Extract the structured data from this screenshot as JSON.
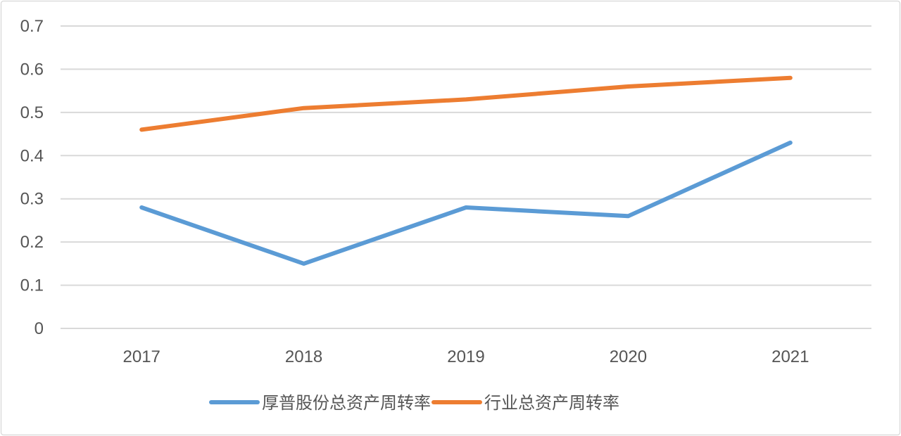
{
  "chart_data": {
    "type": "line",
    "title": "",
    "xlabel": "",
    "ylabel": "",
    "categories": [
      "2017",
      "2018",
      "2019",
      "2020",
      "2021"
    ],
    "ylim": [
      0,
      0.7
    ],
    "yticks": [
      "0",
      "0.1",
      "0.2",
      "0.3",
      "0.4",
      "0.5",
      "0.6",
      "0.7"
    ],
    "grid": true,
    "legend_position": "bottom",
    "series": [
      {
        "name": "厚普股份总资产周转率",
        "color": "#5b9bd5",
        "values": [
          0.28,
          0.15,
          0.28,
          0.26,
          0.43
        ]
      },
      {
        "name": "行业总资产周转率",
        "color": "#ed7d31",
        "values": [
          0.46,
          0.51,
          0.53,
          0.56,
          0.58
        ]
      }
    ]
  }
}
